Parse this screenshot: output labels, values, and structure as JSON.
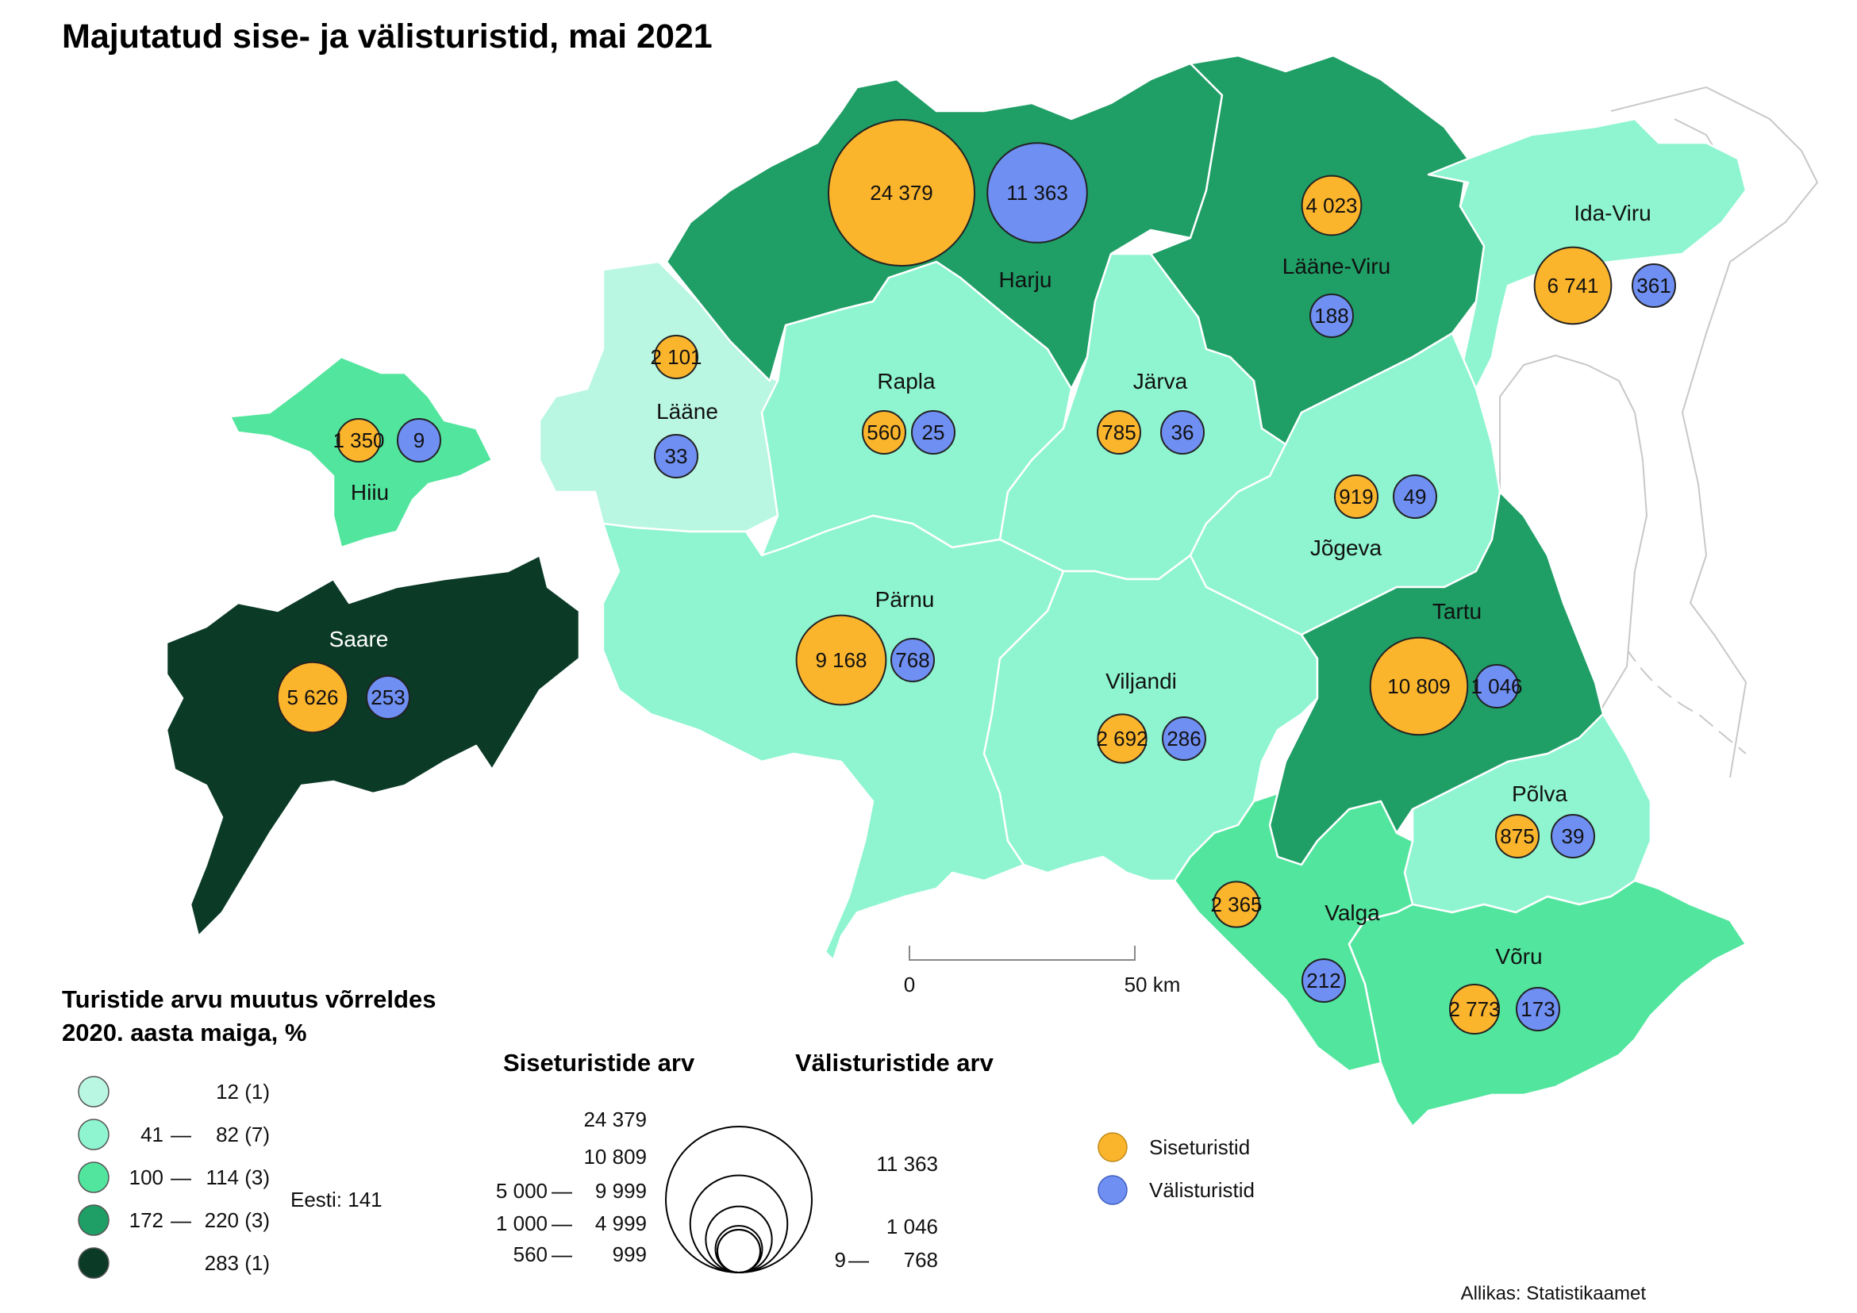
{
  "title": "Majutatud sise- ja välisturistid, mai 2021",
  "colors": {
    "class1": "#b9f7e2",
    "class2": "#8ef5d0",
    "class3": "#52e59e",
    "class4": "#1f9e66",
    "class5": "#0b3a27",
    "domestic": "#fbb52d",
    "foreign": "#6f8ff2",
    "border": "#ffffff",
    "neighbor": "#c8c8c8"
  },
  "counties": [
    {
      "name": "Harju",
      "class": 4,
      "domestic": "24 379",
      "foreign": "11 363",
      "domestic_value": 24379,
      "foreign_value": 11363
    },
    {
      "name": "Lääne-Viru",
      "class": 4,
      "domestic": "4 023",
      "foreign": "188",
      "domestic_value": 4023,
      "foreign_value": 188
    },
    {
      "name": "Ida-Viru",
      "class": 2,
      "domestic": "6 741",
      "foreign": "361",
      "domestic_value": 6741,
      "foreign_value": 361
    },
    {
      "name": "Lääne",
      "class": 1,
      "domestic": "2 101",
      "foreign": "33",
      "domestic_value": 2101,
      "foreign_value": 33
    },
    {
      "name": "Rapla",
      "class": 2,
      "domestic": "560",
      "foreign": "25",
      "domestic_value": 560,
      "foreign_value": 25
    },
    {
      "name": "Järva",
      "class": 2,
      "domestic": "785",
      "foreign": "36",
      "domestic_value": 785,
      "foreign_value": 36
    },
    {
      "name": "Hiiu",
      "class": 3,
      "domestic": "1 350",
      "foreign": "9",
      "domestic_value": 1350,
      "foreign_value": 9
    },
    {
      "name": "Jõgeva",
      "class": 2,
      "domestic": "919",
      "foreign": "49",
      "domestic_value": 919,
      "foreign_value": 49
    },
    {
      "name": "Saare",
      "class": 5,
      "domestic": "5 626",
      "foreign": "253",
      "domestic_value": 5626,
      "foreign_value": 253
    },
    {
      "name": "Pärnu",
      "class": 2,
      "domestic": "9 168",
      "foreign": "768",
      "domestic_value": 9168,
      "foreign_value": 768
    },
    {
      "name": "Tartu",
      "class": 4,
      "domestic": "10 809",
      "foreign": "1 046",
      "domestic_value": 10809,
      "foreign_value": 1046
    },
    {
      "name": "Viljandi",
      "class": 2,
      "domestic": "2 692",
      "foreign": "286",
      "domestic_value": 2692,
      "foreign_value": 286
    },
    {
      "name": "Põlva",
      "class": 2,
      "domestic": "875",
      "foreign": "39",
      "domestic_value": 875,
      "foreign_value": 39
    },
    {
      "name": "Valga",
      "class": 3,
      "domestic": "2 365",
      "foreign": "212",
      "domestic_value": 2365,
      "foreign_value": 212
    },
    {
      "name": "Võru",
      "class": 3,
      "domestic": "2 773",
      "foreign": "173",
      "domestic_value": 2773,
      "foreign_value": 173
    }
  ],
  "scale": {
    "start": "0",
    "end": "50 km"
  },
  "legend_change": {
    "title_line1": "Turistide arvu muutus võrreldes",
    "title_line2": "2020. aasta maiga, %",
    "items": [
      {
        "low": "",
        "dash": "",
        "high": "12 (1)"
      },
      {
        "low": "41",
        "dash": "—",
        "high": "82 (7)"
      },
      {
        "low": "100",
        "dash": "—",
        "high": "114 (3)"
      },
      {
        "low": "172",
        "dash": "—",
        "high": "220 (3)"
      },
      {
        "low": "",
        "dash": "",
        "high": "283 (1)"
      }
    ],
    "total": "Eesti: 141"
  },
  "legend_size": {
    "domestic_title": "Siseturistide arv",
    "foreign_title": "Välisturistide arv",
    "domestic_labels": [
      {
        "low": "",
        "dash": "",
        "high": "24 379"
      },
      {
        "low": "",
        "dash": "",
        "high": "10 809"
      },
      {
        "low": "5 000",
        "dash": "—",
        "high": "9 999"
      },
      {
        "low": "1 000",
        "dash": "—",
        "high": "4 999"
      },
      {
        "low": "560",
        "dash": "—",
        "high": "999"
      }
    ],
    "foreign_labels": [
      {
        "low": "",
        "dash": "",
        "high": "11 363"
      },
      {
        "low": "",
        "dash": "",
        "high": "1 046"
      },
      {
        "low": "9",
        "dash": "—",
        "high": "768"
      }
    ]
  },
  "legend_type": {
    "domestic": "Siseturistid",
    "foreign": "Välisturistid"
  },
  "source": "Allikas: Statistikaamet"
}
